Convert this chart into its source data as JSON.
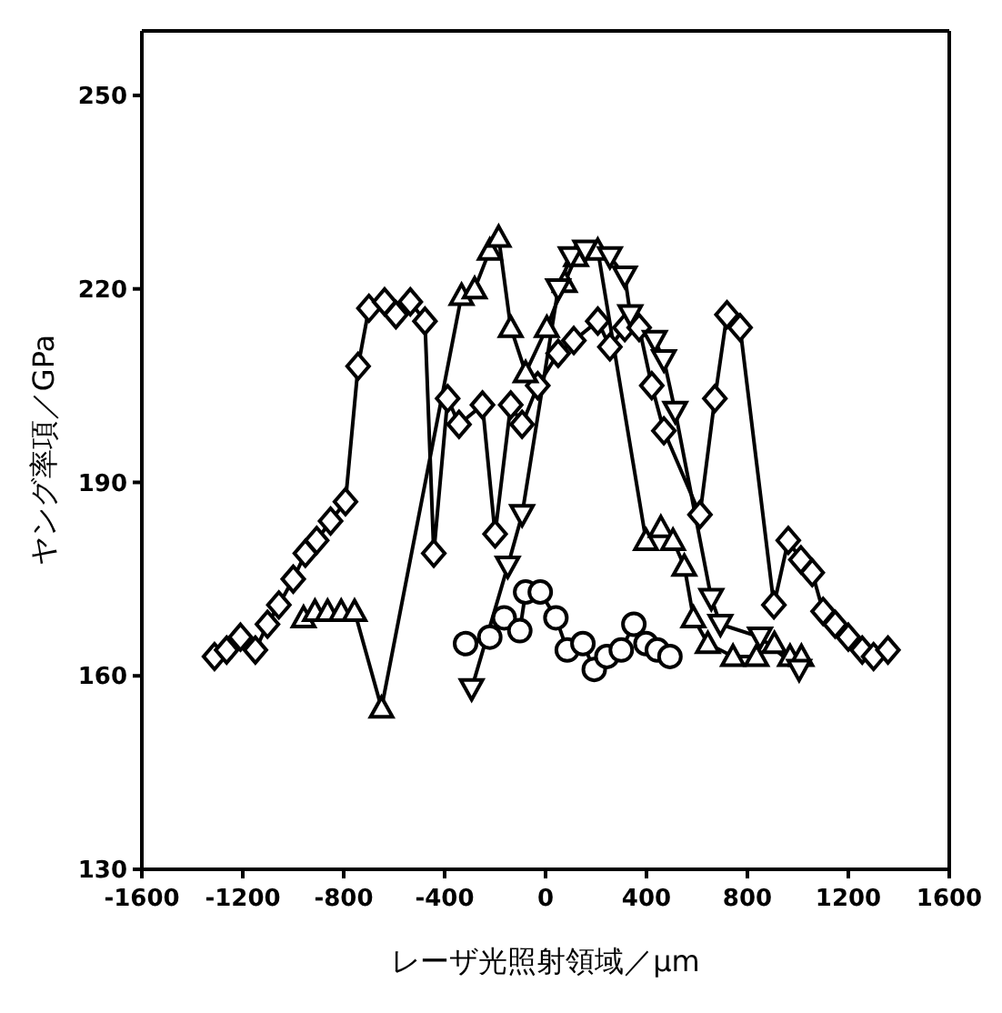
{
  "chart_data": {
    "type": "line",
    "xlabel": "レーザ光照射領域／μm",
    "ylabel": "ヤング率項／GPa",
    "xlim": [
      -1600,
      1600
    ],
    "xticks": [
      -1600,
      -1200,
      -800,
      -400,
      0,
      400,
      800,
      1200,
      1600
    ],
    "ylim": [
      130,
      260
    ],
    "yticks": [
      130,
      160,
      190,
      220,
      250
    ],
    "grid": false,
    "legend": false,
    "series": [
      {
        "color": "#000000",
        "marker": "diamond",
        "x": [
          -1312,
          -1264,
          -1209,
          -1150,
          -1102,
          -1057,
          -1000,
          -952,
          -907,
          -852,
          -793,
          -743,
          -700,
          -638,
          -593,
          -536,
          -478,
          -443,
          -388,
          -343,
          -250,
          -200,
          -138,
          -93,
          -31,
          50,
          112,
          207,
          255,
          314,
          371,
          421,
          469,
          612,
          671,
          719,
          771,
          905,
          962,
          1012,
          1057,
          1100,
          1148,
          1200,
          1255,
          1300,
          1357
        ],
        "values": [
          163,
          164,
          166,
          164,
          168,
          171,
          175,
          179,
          181,
          184,
          187,
          208,
          217,
          218,
          216,
          218,
          215,
          179,
          203,
          199,
          202,
          182,
          202,
          199,
          205,
          210,
          212,
          215,
          211,
          214,
          214,
          205,
          198,
          185,
          203,
          216,
          214,
          171,
          181,
          178,
          176,
          170,
          168,
          166,
          164,
          163,
          164
        ]
      },
      {
        "color": "#000000",
        "marker": "triangle",
        "x": [
          -959,
          -914,
          -864,
          -810,
          -757,
          -650,
          -333,
          -281,
          -221,
          -186,
          -138,
          -79,
          5,
          76,
          121,
          207,
          398,
          457,
          505,
          550,
          586,
          643,
          743,
          836,
          907,
          969,
          1014
        ],
        "values": [
          169,
          170,
          170,
          170,
          170,
          155,
          219,
          220,
          226,
          228,
          214,
          207,
          214,
          221,
          225,
          226,
          181,
          183,
          181,
          177,
          169,
          165,
          163,
          163,
          165,
          163,
          163
        ]
      },
      {
        "color": "#000000",
        "marker": "triangle-down",
        "x": [
          -293,
          -150,
          -93,
          50,
          100,
          157,
          255,
          314,
          336,
          433,
          469,
          514,
          657,
          693,
          850,
          1005
        ],
        "values": [
          158,
          177,
          185,
          220,
          225,
          226,
          225,
          222,
          216,
          212,
          209,
          201,
          172,
          168,
          166,
          161
        ]
      },
      {
        "color": "#000000",
        "marker": "circle",
        "x": [
          -317,
          -221,
          -164,
          -102,
          -79,
          -21,
          41,
          86,
          148,
          193,
          243,
          300,
          350,
          398,
          443,
          493
        ],
        "values": [
          165,
          166,
          169,
          167,
          173,
          173,
          169,
          164,
          165,
          161,
          163,
          164,
          168,
          165,
          164,
          163
        ]
      }
    ]
  }
}
